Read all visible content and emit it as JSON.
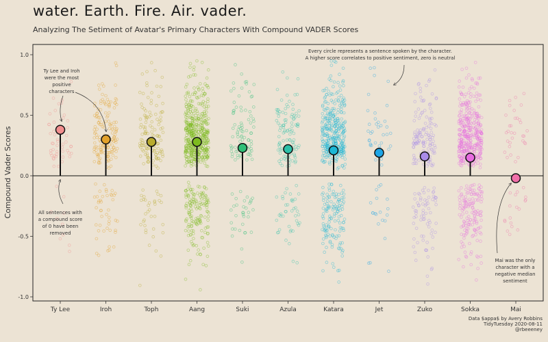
{
  "title": "water. Earth. Fire. Air. vader.",
  "subtitle": "Analyzing The Setiment of Avatar's Primary Characters With Compound VADER Scores",
  "caption_lines": [
    "Data $appa$ by Avery Robbins",
    "TidyTuesday 2020-08-11",
    "@rbeeeney"
  ],
  "chart_data": {
    "type": "scatter",
    "xlabel": "",
    "ylabel": "Compound Vader Scores",
    "ylim": [
      -1.0,
      1.0
    ],
    "yticks": [
      1.0,
      0.5,
      0.0,
      -0.5,
      -1.0
    ],
    "ytick_labels": [
      "1.0",
      "0.5",
      "0.0",
      "-0.5",
      "-1.0"
    ],
    "grid": false,
    "categories": [
      "Ty Lee",
      "Iroh",
      "Toph",
      "Aang",
      "Suki",
      "Azula",
      "Katara",
      "Jet",
      "Zuko",
      "Sokka",
      "Mai"
    ],
    "median_scores": [
      0.38,
      0.3,
      0.28,
      0.28,
      0.23,
      0.22,
      0.21,
      0.19,
      0.16,
      0.15,
      -0.02
    ],
    "sentence_counts": [
      60,
      200,
      170,
      650,
      120,
      150,
      500,
      60,
      210,
      560,
      50
    ],
    "colors": [
      "#f28e8e",
      "#e3a22c",
      "#b8ab2e",
      "#7dbb1f",
      "#2fbf77",
      "#2cc0a8",
      "#1bb6d4",
      "#1da5e6",
      "#a98be8",
      "#e76be0",
      "#f06fa8"
    ],
    "annotations": [
      "Ty Lee and Iroh were the most positive characters",
      "All sentences with a compound score of 0 have been removed",
      "Every circle represents a sentence spoken by the character.\nA higher score correlates to positive sentiment, zero is neutral",
      "Mai was the only character with a negative median sentiment"
    ]
  }
}
